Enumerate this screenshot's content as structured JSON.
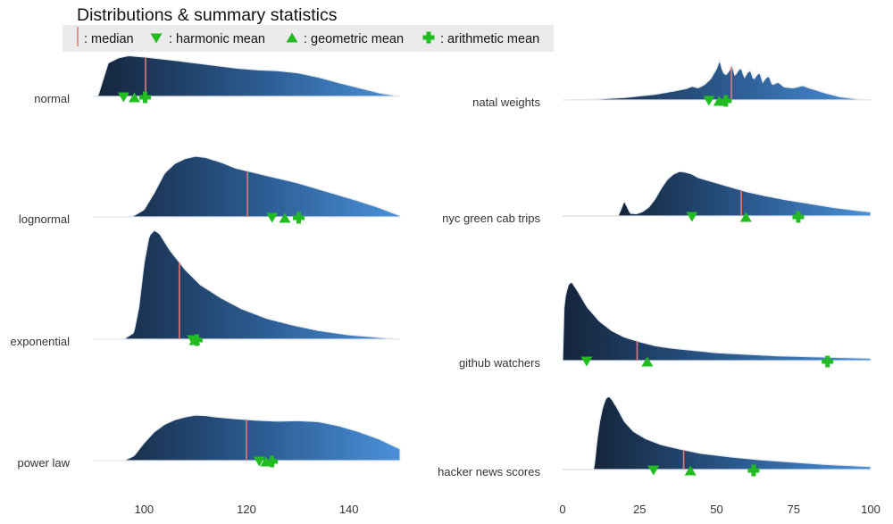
{
  "chart_data": {
    "type": "ridgeline",
    "title": "Distributions & summary statistics",
    "legend": {
      "placement": "top-left",
      "items": [
        {
          "key": "median",
          "label": ": median",
          "color": "#e07a7a"
        },
        {
          "key": "harmonic",
          "label": ": harmonic mean",
          "color": "#33bb22"
        },
        {
          "key": "geometric",
          "label": ": geometric mean",
          "color": "#33bb22"
        },
        {
          "key": "arithmetic",
          "label": ": arithmetic mean",
          "color": "#33bb22"
        }
      ]
    },
    "colors": {
      "fill_dark": "#14243a",
      "fill_light": "#4a90d9",
      "median": "#e07a7a",
      "means": "#22bb22",
      "axis_text": "#333333"
    },
    "panels": [
      {
        "name": "left",
        "xlim": [
          90,
          150
        ],
        "ticks": [
          100,
          120,
          140
        ],
        "tick_labels": [
          "100",
          "120",
          "140"
        ],
        "ridges": [
          {
            "label": "normal",
            "xrange": [
              90,
              150
            ],
            "peak": 0.9,
            "density": [
              [
                90,
                0.0
              ],
              [
                91,
                0.01
              ],
              [
                92,
                0.4
              ],
              [
                93,
                0.78
              ],
              [
                95,
                0.9
              ],
              [
                97,
                0.95
              ],
              [
                100,
                0.92
              ],
              [
                103,
                0.88
              ],
              [
                106,
                0.84
              ],
              [
                110,
                0.78
              ],
              [
                114,
                0.72
              ],
              [
                118,
                0.66
              ],
              [
                122,
                0.62
              ],
              [
                126,
                0.6
              ],
              [
                130,
                0.55
              ],
              [
                134,
                0.45
              ],
              [
                138,
                0.32
              ],
              [
                142,
                0.2
              ],
              [
                146,
                0.08
              ],
              [
                150,
                0.0
              ]
            ],
            "median": 100.3,
            "harmonic": 96.0,
            "geometric": 98.1,
            "arithmetic": 100.2
          },
          {
            "label": "lognormal",
            "xrange": [
              90,
              150
            ],
            "peak": 0.95,
            "density": [
              [
                90,
                0.0
              ],
              [
                96,
                0.0
              ],
              [
                98,
                0.02
              ],
              [
                100,
                0.12
              ],
              [
                102,
                0.4
              ],
              [
                104,
                0.72
              ],
              [
                106,
                0.88
              ],
              [
                108,
                0.96
              ],
              [
                110,
                1.0
              ],
              [
                112,
                0.98
              ],
              [
                115,
                0.9
              ],
              [
                118,
                0.8
              ],
              [
                122,
                0.72
              ],
              [
                126,
                0.64
              ],
              [
                130,
                0.56
              ],
              [
                134,
                0.46
              ],
              [
                138,
                0.36
              ],
              [
                142,
                0.26
              ],
              [
                146,
                0.15
              ],
              [
                150,
                0.02
              ]
            ],
            "median": 120.2,
            "harmonic": 125.0,
            "geometric": 127.5,
            "arithmetic": 130.2
          },
          {
            "label": "exponential",
            "xrange": [
              90,
              150
            ],
            "peak": 1.05,
            "density": [
              [
                90,
                0.0
              ],
              [
                96,
                0.0
              ],
              [
                98,
                0.06
              ],
              [
                99,
                0.3
              ],
              [
                100,
                0.7
              ],
              [
                101,
                0.95
              ],
              [
                102,
                1.0
              ],
              [
                103,
                0.97
              ],
              [
                105,
                0.82
              ],
              [
                108,
                0.64
              ],
              [
                111,
                0.5
              ],
              [
                115,
                0.38
              ],
              [
                119,
                0.28
              ],
              [
                124,
                0.19
              ],
              [
                129,
                0.13
              ],
              [
                134,
                0.08
              ],
              [
                140,
                0.04
              ],
              [
                145,
                0.02
              ],
              [
                150,
                0.0
              ]
            ],
            "median": 106.9,
            "harmonic": 109.5,
            "geometric": 109.9,
            "arithmetic": 110.3
          },
          {
            "label": "power law",
            "xrange": [
              90,
              150
            ],
            "peak": 0.58,
            "density": [
              [
                90,
                0.0
              ],
              [
                96,
                0.0
              ],
              [
                98,
                0.1
              ],
              [
                100,
                0.38
              ],
              [
                102,
                0.62
              ],
              [
                104,
                0.78
              ],
              [
                106,
                0.88
              ],
              [
                108,
                0.94
              ],
              [
                110,
                0.98
              ],
              [
                112,
                0.97
              ],
              [
                114,
                0.94
              ],
              [
                118,
                0.9
              ],
              [
                122,
                0.87
              ],
              [
                126,
                0.85
              ],
              [
                130,
                0.86
              ],
              [
                134,
                0.84
              ],
              [
                138,
                0.75
              ],
              [
                142,
                0.62
              ],
              [
                146,
                0.46
              ],
              [
                150,
                0.25
              ]
            ],
            "median": 120.0,
            "harmonic": 122.5,
            "geometric": 123.8,
            "arithmetic": 125.0
          }
        ]
      },
      {
        "name": "right",
        "xlim": [
          0,
          100
        ],
        "ticks": [
          0,
          25,
          50,
          75,
          100
        ],
        "tick_labels": [
          "0",
          "25",
          "50",
          "75",
          "100"
        ],
        "ridges": [
          {
            "label": "natal weights",
            "xrange": [
              0,
              100
            ],
            "peak": 0.8,
            "density": [
              [
                0,
                0.0
              ],
              [
                10,
                0.02
              ],
              [
                20,
                0.06
              ],
              [
                30,
                0.14
              ],
              [
                36,
                0.22
              ],
              [
                40,
                0.28
              ],
              [
                42,
                0.34
              ],
              [
                44,
                0.3
              ],
              [
                46,
                0.38
              ],
              [
                48,
                0.52
              ],
              [
                50,
                0.78
              ],
              [
                51,
                1.0
              ],
              [
                52,
                0.7
              ],
              [
                53,
                0.62
              ],
              [
                54,
                0.72
              ],
              [
                55,
                0.85
              ],
              [
                56,
                0.6
              ],
              [
                57,
                0.74
              ],
              [
                58,
                0.8
              ],
              [
                59,
                0.55
              ],
              [
                60,
                0.68
              ],
              [
                61,
                0.74
              ],
              [
                62,
                0.5
              ],
              [
                63,
                0.62
              ],
              [
                64,
                0.68
              ],
              [
                65,
                0.44
              ],
              [
                66,
                0.55
              ],
              [
                67,
                0.6
              ],
              [
                68,
                0.38
              ],
              [
                70,
                0.44
              ],
              [
                72,
                0.32
              ],
              [
                75,
                0.3
              ],
              [
                78,
                0.36
              ],
              [
                80,
                0.3
              ],
              [
                85,
                0.18
              ],
              [
                90,
                0.08
              ],
              [
                95,
                0.03
              ],
              [
                100,
                0.0
              ]
            ],
            "median": 54.8,
            "harmonic": 47.5,
            "geometric": 50.8,
            "arithmetic": 53.0
          },
          {
            "label": "nyc green cab trips",
            "xrange": [
              18,
              100
            ],
            "peak": 0.65,
            "density": [
              [
                18,
                0.0
              ],
              [
                19,
                0.16
              ],
              [
                20,
                0.34
              ],
              [
                21,
                0.2
              ],
              [
                22,
                0.06
              ],
              [
                24,
                0.05
              ],
              [
                26,
                0.1
              ],
              [
                28,
                0.2
              ],
              [
                30,
                0.38
              ],
              [
                32,
                0.62
              ],
              [
                34,
                0.82
              ],
              [
                36,
                0.94
              ],
              [
                38,
                1.0
              ],
              [
                40,
                0.98
              ],
              [
                42,
                0.94
              ],
              [
                44,
                0.86
              ],
              [
                48,
                0.78
              ],
              [
                52,
                0.7
              ],
              [
                56,
                0.62
              ],
              [
                60,
                0.54
              ],
              [
                66,
                0.45
              ],
              [
                72,
                0.37
              ],
              [
                80,
                0.28
              ],
              [
                88,
                0.19
              ],
              [
                96,
                0.12
              ],
              [
                100,
                0.09
              ]
            ],
            "median": 58.0,
            "harmonic": 42.0,
            "geometric": 59.5,
            "arithmetic": 76.5
          },
          {
            "label": "github watchers",
            "xrange": [
              0,
              100
            ],
            "peak": 1.05,
            "density": [
              [
                0,
                0.0
              ],
              [
                0.3,
                0.62
              ],
              [
                1,
                0.85
              ],
              [
                2,
                0.98
              ],
              [
                3,
                1.0
              ],
              [
                5,
                0.88
              ],
              [
                8,
                0.68
              ],
              [
                12,
                0.5
              ],
              [
                16,
                0.38
              ],
              [
                20,
                0.3
              ],
              [
                25,
                0.24
              ],
              [
                30,
                0.19
              ],
              [
                35,
                0.16
              ],
              [
                40,
                0.14
              ],
              [
                45,
                0.12
              ],
              [
                50,
                0.1
              ],
              [
                55,
                0.09
              ],
              [
                60,
                0.08
              ],
              [
                70,
                0.06
              ],
              [
                80,
                0.05
              ],
              [
                90,
                0.04
              ],
              [
                100,
                0.03
              ]
            ],
            "median": 24.2,
            "harmonic": 7.8,
            "geometric": 27.5,
            "arithmetic": 86.0
          },
          {
            "label": "hacker news scores",
            "xrange": [
              10,
              100
            ],
            "peak": 0.8,
            "density": [
              [
                10,
                0.0
              ],
              [
                10.5,
                0.12
              ],
              [
                11,
                0.35
              ],
              [
                12,
                0.65
              ],
              [
                13,
                0.85
              ],
              [
                14,
                0.97
              ],
              [
                15,
                1.0
              ],
              [
                16,
                0.96
              ],
              [
                18,
                0.82
              ],
              [
                20,
                0.66
              ],
              [
                23,
                0.52
              ],
              [
                27,
                0.42
              ],
              [
                32,
                0.34
              ],
              [
                38,
                0.28
              ],
              [
                45,
                0.22
              ],
              [
                55,
                0.17
              ],
              [
                65,
                0.13
              ],
              [
                75,
                0.1
              ],
              [
                85,
                0.07
              ],
              [
                95,
                0.05
              ],
              [
                100,
                0.04
              ]
            ],
            "median": 39.3,
            "harmonic": 29.5,
            "geometric": 41.5,
            "arithmetic": 62.0
          }
        ]
      }
    ]
  }
}
